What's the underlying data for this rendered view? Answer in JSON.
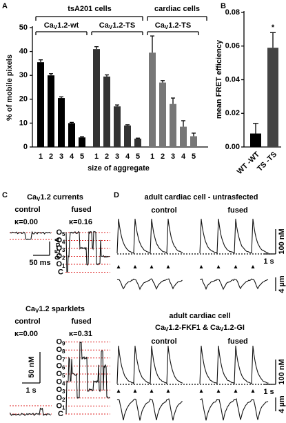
{
  "chart_data": [
    {
      "type": "bar",
      "panel": "A",
      "group_labels": [
        "tsA201 cells",
        "cardiac cells"
      ],
      "categories": [
        "1",
        "2",
        "3",
        "4",
        "5"
      ],
      "x_label": "size of aggregate",
      "y_label": "% of mobile pixels",
      "ylim": [
        0,
        50
      ],
      "yticks": [
        0,
        10,
        20,
        30,
        40,
        50
      ],
      "series": [
        {
          "name": [
            "Ca",
            "V",
            "1.2-wt"
          ],
          "color": "#000000",
          "values": [
            35.5,
            30,
            20.5,
            10,
            4
          ],
          "errors": [
            1,
            0.7,
            0.5,
            0.3,
            0.3
          ]
        },
        {
          "name": [
            "Ca",
            "V",
            "1.2-TS"
          ],
          "color": "#333333",
          "values": [
            41,
            29.5,
            17,
            9,
            3.5
          ],
          "errors": [
            1,
            0.7,
            0.6,
            0.3,
            0.2
          ]
        },
        {
          "name": [
            "Ca",
            "V",
            "1.2-TS"
          ],
          "color": "#777777",
          "values": [
            39.5,
            27,
            18,
            8.5,
            4.5
          ],
          "errors": [
            7,
            0.8,
            2.5,
            2.5,
            1.3
          ]
        }
      ]
    },
    {
      "type": "bar",
      "panel": "B",
      "y_label": "mean FRET efficiency",
      "categories": [
        "WT -WT",
        "TS -TS"
      ],
      "values": [
        0.008,
        0.059
      ],
      "errors": [
        0.006,
        0.009
      ],
      "colors": [
        "#000000",
        "#444444"
      ],
      "annotation": "*",
      "ylim": [
        0,
        0.08
      ],
      "yticks": [
        {
          "value": 0,
          "label": "0.00"
        },
        {
          "value": 0.02,
          "label": "0.02"
        },
        {
          "value": 0.04,
          "label": "0.04"
        },
        {
          "value": 0.06,
          "label": "0.06"
        },
        {
          "value": 0.08,
          "label": "0.08"
        }
      ]
    }
  ],
  "panel_c": {
    "letter": "C",
    "currents": {
      "title": [
        "Ca",
        "V",
        "1.2 currents"
      ],
      "control": "control",
      "fused": "fused",
      "kappa_control": "κ=0.00",
      "kappa_fused": "κ=0.16",
      "time_scale": "50 ms",
      "amp_scale": "0.5 pA",
      "levels": [
        "C",
        [
          "O",
          "1"
        ],
        [
          "O",
          "2"
        ],
        [
          "O",
          "3"
        ],
        [
          "O",
          "4"
        ],
        [
          "O",
          "5"
        ]
      ]
    },
    "sparklets": {
      "title": [
        "Ca",
        "V",
        "1.2 sparklets"
      ],
      "control": "control",
      "fused": "fused",
      "kappa_control": "κ=0.00",
      "kappa_fused": "κ=0.31",
      "conc_scale": "50 nM",
      "time_scale": "1 s",
      "levels": [
        "C",
        [
          "O",
          "1"
        ],
        [
          "O",
          "2"
        ],
        [
          "O",
          "3"
        ],
        [
          "O",
          "4"
        ],
        [
          "O",
          "5"
        ],
        [
          "O",
          "6"
        ],
        [
          "O",
          "7"
        ],
        [
          "O",
          "8"
        ],
        [
          "O",
          "9"
        ]
      ]
    }
  },
  "panel_d": {
    "letter": "D",
    "top": {
      "title": "adult cardiac cell - untrasfected",
      "control": "control",
      "fused": "fused",
      "conc_scale": "100 nM",
      "time_scale": "1 s",
      "length_scale": "4 µm"
    },
    "bottom": {
      "title": "adult cardiac cell",
      "subtitle": [
        [
          "Ca",
          "V",
          "1.2-FKF1 & "
        ],
        [
          "Ca",
          "V",
          "1.2-GI"
        ]
      ],
      "control": "control",
      "fused": "fused",
      "conc_scale": "100 nM",
      "time_scale": "1 s",
      "length_scale": "4 µm"
    }
  }
}
